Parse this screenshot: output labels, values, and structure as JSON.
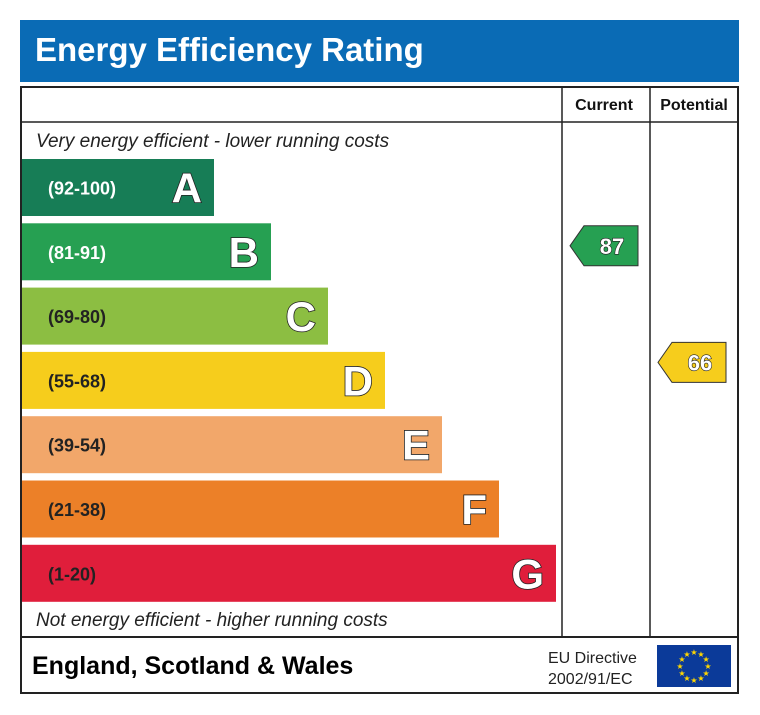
{
  "chart_data": {
    "type": "bar",
    "title": "Energy Efficiency Rating",
    "top_caption": "Very energy efficient - lower running costs",
    "bottom_caption": "Not energy efficient - higher running costs",
    "columns": {
      "current": "Current",
      "potential": "Potential"
    },
    "bands": [
      {
        "letter": "A",
        "range": "(92-100)",
        "min": 92,
        "max": 100,
        "color": "#177d56",
        "range_color": "#ffffff"
      },
      {
        "letter": "B",
        "range": "(81-91)",
        "min": 81,
        "max": 91,
        "color": "#26a052",
        "range_color": "#ffffff"
      },
      {
        "letter": "C",
        "range": "(69-80)",
        "min": 69,
        "max": 80,
        "color": "#8cbe42",
        "range_color": "#222222"
      },
      {
        "letter": "D",
        "range": "(55-68)",
        "min": 55,
        "max": 68,
        "color": "#f6cd1c",
        "range_color": "#222222"
      },
      {
        "letter": "E",
        "range": "(39-54)",
        "min": 39,
        "max": 54,
        "color": "#f2a76a",
        "range_color": "#222222"
      },
      {
        "letter": "F",
        "range": "(21-38)",
        "min": 21,
        "max": 38,
        "color": "#ec8028",
        "range_color": "#222222"
      },
      {
        "letter": "G",
        "range": "(1-20)",
        "min": 1,
        "max": 20,
        "color": "#e01e3b",
        "range_color": "#222222"
      }
    ],
    "current": {
      "value": 87,
      "band": "B",
      "color": "#26a052"
    },
    "potential": {
      "value": 66,
      "band": "D",
      "color": "#f6cd1c"
    },
    "footer": {
      "region": "England, Scotland & Wales",
      "directive_line1": "EU Directive",
      "directive_line2": "2002/91/EC",
      "flag": "eu-flag-icon"
    },
    "header_color": "#0a6bb5"
  }
}
